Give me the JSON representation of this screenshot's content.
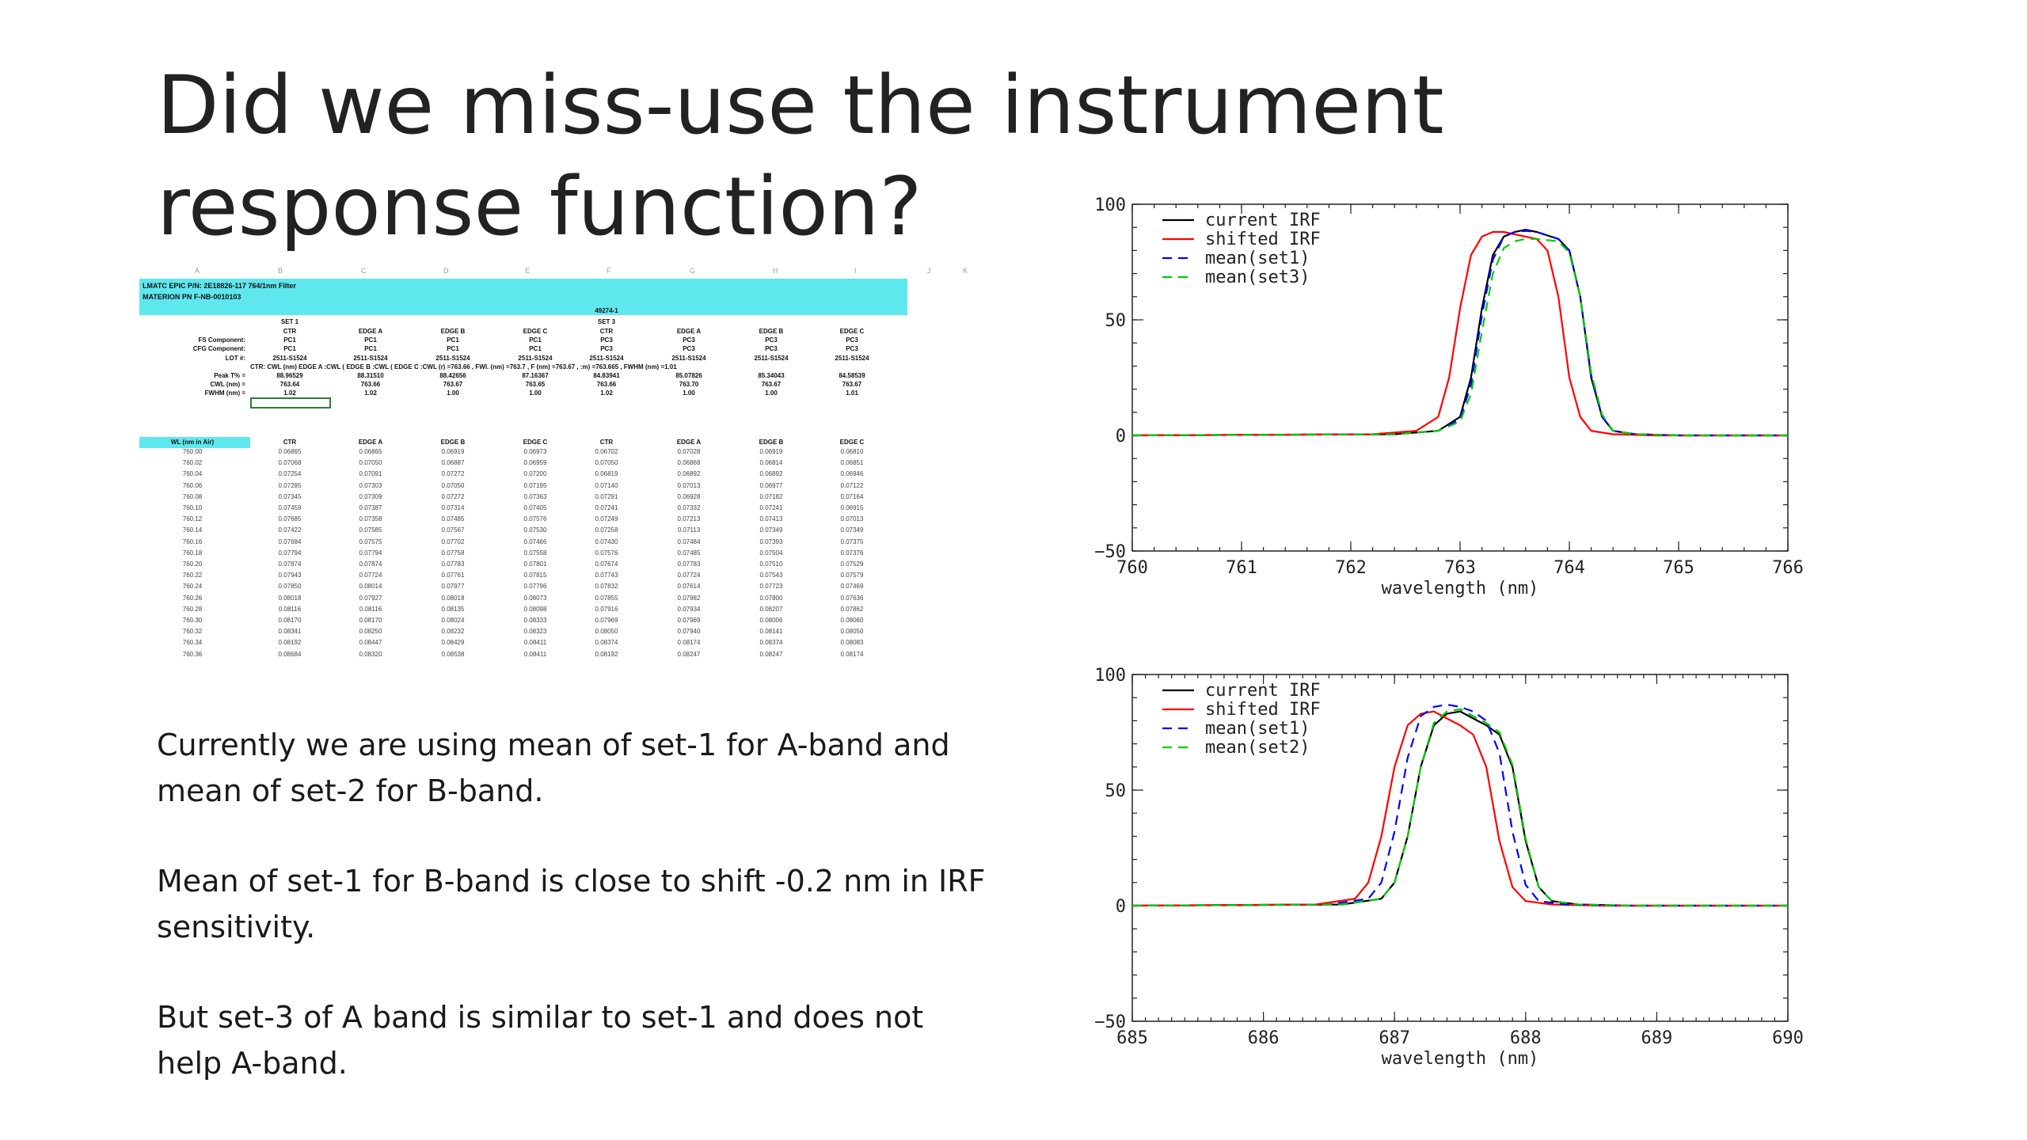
{
  "slide": {
    "title": "Did we miss-use the instrument response function?",
    "bullets": [
      "Currently we are using mean of set-1 for A-band and mean of set-2 for B-band.",
      "Mean of set-1 for B-band is close to shift -0.2 nm in IRF sensitivity.",
      "But set-3 of A band is similar to set-1 and does not help A-band."
    ]
  },
  "spreadsheet": {
    "column_letters": [
      "A",
      "B",
      "C",
      "D",
      "E",
      "F",
      "G",
      "H",
      "I",
      "J",
      "K"
    ],
    "header_line1": "LMATC EPIC P/N: 2E18826-117   764/1nm Filter",
    "header_line2": "MATERION PN F-NB-0010103",
    "lot_number_top": "49274-1",
    "set_labels": [
      "SET 1",
      "SET 3"
    ],
    "row_labels": [
      "FS Component:",
      "CFG Component:",
      "LOT #:",
      "Peak T% =",
      "CWL (nm) =",
      "FWHM (nm) ="
    ],
    "wl_header": "WL (nm in Air)",
    "columns": [
      "CTR",
      "EDGE A",
      "EDGE B",
      "EDGE C",
      "CTR",
      "EDGE A",
      "EDGE B",
      "EDGE C"
    ],
    "fs_component": [
      "PC1",
      "PC1",
      "PC1",
      "PC1",
      "PC3",
      "PC3",
      "PC3",
      "PC3"
    ],
    "cfg_component": [
      "PC1",
      "PC1",
      "PC1",
      "PC1",
      "PC3",
      "PC3",
      "PC3",
      "PC3"
    ],
    "lot": [
      "2511-S1524",
      "2511-S1524",
      "2511-S1524",
      "2511-S1524",
      "2511-S1524",
      "2511-S1524",
      "2511-S1524",
      "2511-S1524"
    ],
    "desc_row": "CTR: CWL (nm) EDGE A :CWL ( EDGE B :CWL ( EDGE C :CWL (r) =763.66 , FWI. (nm) =763.7 , F (nm) =763.67 , :m) =763.665 , FWHM (nm) =1.01",
    "peak": [
      "88.96529",
      "88.31510",
      "88.42656",
      "87.16367",
      "84.83941",
      "85.07826",
      "85.34043",
      "84.58539"
    ],
    "cwl": [
      "763.64",
      "763.66",
      "763.67",
      "763.65",
      "763.66",
      "763.70",
      "763.67",
      "763.67"
    ],
    "fwhm": [
      "1.02",
      "1.02",
      "1.00",
      "1.00",
      "1.02",
      "1.00",
      "1.00",
      "1.01"
    ],
    "wavelengths": [
      "760.00",
      "760.02",
      "760.04",
      "760.06",
      "760.08",
      "760.10",
      "760.12",
      "760.14",
      "760.16",
      "760.18",
      "760.20",
      "760.22",
      "760.24",
      "760.26",
      "760.28",
      "760.30",
      "760.32",
      "760.34",
      "760.36"
    ],
    "rows": [
      [
        "0.06865",
        "0.06865",
        "0.06919",
        "0.06973",
        "0.06702",
        "0.07028",
        "0.06919",
        "0.06810"
      ],
      [
        "0.07068",
        "0.07050",
        "0.06887",
        "0.06959",
        "0.07050",
        "0.06868",
        "0.06814",
        "0.06851"
      ],
      [
        "0.07254",
        "0.07091",
        "0.07272",
        "0.07200",
        "0.06819",
        "0.06892",
        "0.06892",
        "0.06946"
      ],
      [
        "0.07285",
        "0.07303",
        "0.07050",
        "0.07195",
        "0.07140",
        "0.07013",
        "0.06977",
        "0.07122"
      ],
      [
        "0.07345",
        "0.07309",
        "0.07272",
        "0.07363",
        "0.07291",
        "0.06928",
        "0.07182",
        "0.07164"
      ],
      [
        "0.07459",
        "0.07387",
        "0.07314",
        "0.07405",
        "0.07241",
        "0.07332",
        "0.07241",
        "0.06915"
      ],
      [
        "0.07685",
        "0.07358",
        "0.07485",
        "0.07576",
        "0.07249",
        "0.07213",
        "0.07413",
        "0.07013"
      ],
      [
        "0.07422",
        "0.07585",
        "0.07567",
        "0.07530",
        "0.07258",
        "0.07113",
        "0.07349",
        "0.07349"
      ],
      [
        "0.07684",
        "0.07575",
        "0.07702",
        "0.07466",
        "0.07430",
        "0.07484",
        "0.07393",
        "0.07375"
      ],
      [
        "0.07794",
        "0.07794",
        "0.07758",
        "0.07558",
        "0.07576",
        "0.07485",
        "0.07504",
        "0.07376"
      ],
      [
        "0.07874",
        "0.07874",
        "0.07783",
        "0.07801",
        "0.07674",
        "0.07783",
        "0.07510",
        "0.07529"
      ],
      [
        "0.07943",
        "0.07724",
        "0.07761",
        "0.07815",
        "0.07743",
        "0.07724",
        "0.07543",
        "0.07579"
      ],
      [
        "0.07850",
        "0.08014",
        "0.07977",
        "0.07796",
        "0.07832",
        "0.07614",
        "0.07723",
        "0.07469"
      ],
      [
        "0.08018",
        "0.07927",
        "0.08018",
        "0.08073",
        "0.07855",
        "0.07982",
        "0.07800",
        "0.07636"
      ],
      [
        "0.08116",
        "0.08116",
        "0.08135",
        "0.08098",
        "0.07916",
        "0.07934",
        "0.08207",
        "0.07862"
      ],
      [
        "0.08170",
        "0.08170",
        "0.08024",
        "0.08333",
        "0.07969",
        "0.07969",
        "0.08006",
        "0.08060"
      ],
      [
        "0.08341",
        "0.08250",
        "0.08232",
        "0.08323",
        "0.08050",
        "0.07940",
        "0.08141",
        "0.08050"
      ],
      [
        "0.08192",
        "0.08447",
        "0.08429",
        "0.08411",
        "0.08374",
        "0.08174",
        "0.08374",
        "0.08083"
      ],
      [
        "0.08684",
        "0.08320",
        "0.08538",
        "0.08411",
        "0.08192",
        "0.08247",
        "0.08247",
        "0.08174"
      ]
    ]
  },
  "chart_data": [
    {
      "type": "line",
      "title": "",
      "xlabel": "wavelength (nm)",
      "ylabel": "",
      "xlim": [
        760,
        766
      ],
      "ylim": [
        -50,
        100
      ],
      "xticks": [
        760,
        761,
        762,
        763,
        764,
        765,
        766
      ],
      "yticks": [
        -50,
        0,
        50,
        100
      ],
      "legend_position": "top-left",
      "grid": false,
      "series": [
        {
          "name": "current IRF",
          "color": "#000000",
          "dash": "solid",
          "x": [
            760.0,
            762.4,
            762.8,
            763.0,
            763.1,
            763.2,
            763.3,
            763.4,
            763.5,
            763.6,
            763.7,
            763.8,
            763.9,
            764.0,
            764.1,
            764.2,
            764.3,
            764.4,
            764.6,
            765.0,
            766.0
          ],
          "y": [
            0,
            0.5,
            2,
            8,
            25,
            55,
            78,
            86,
            88,
            89,
            88,
            86.5,
            85,
            80,
            60,
            25,
            8,
            2,
            0.5,
            0,
            0
          ]
        },
        {
          "name": "shifted IRF",
          "color": "#ff0000",
          "dash": "solid",
          "x": [
            760.0,
            762.2,
            762.6,
            762.8,
            762.9,
            763.0,
            763.1,
            763.2,
            763.3,
            763.4,
            763.5,
            763.6,
            763.7,
            763.8,
            763.9,
            764.0,
            764.1,
            764.2,
            764.4,
            764.8,
            766.0
          ],
          "y": [
            0,
            0.5,
            2,
            8,
            25,
            55,
            78,
            86,
            88,
            88,
            87,
            86,
            85,
            80,
            60,
            25,
            8,
            2,
            0.5,
            0,
            0
          ]
        },
        {
          "name": "mean(set1)",
          "color": "#0000ff",
          "dash": "dashed",
          "x": [
            760.0,
            762.4,
            762.8,
            763.0,
            763.1,
            763.2,
            763.3,
            763.4,
            763.5,
            763.6,
            763.7,
            763.8,
            763.9,
            764.0,
            764.1,
            764.2,
            764.3,
            764.4,
            764.6,
            765.0,
            766.0
          ],
          "y": [
            0,
            0.5,
            2,
            7,
            22,
            52,
            76,
            86,
            88,
            88.5,
            88,
            86.5,
            85,
            80,
            60,
            26,
            8,
            2,
            0.5,
            0,
            0
          ]
        },
        {
          "name": "mean(set3)",
          "color": "#00cc00",
          "dash": "dashed",
          "x": [
            760.0,
            762.4,
            762.8,
            763.0,
            763.1,
            763.2,
            763.3,
            763.4,
            763.5,
            763.6,
            763.7,
            763.8,
            763.9,
            764.0,
            764.1,
            764.2,
            764.3,
            764.4,
            764.6,
            765.0,
            766.0
          ],
          "y": [
            0,
            0.5,
            2,
            6,
            18,
            45,
            70,
            81,
            84,
            85,
            85,
            84.5,
            84,
            79,
            60,
            27,
            9,
            2,
            0.5,
            0,
            0
          ]
        }
      ]
    },
    {
      "type": "line",
      "title": "",
      "xlabel": "wavelength (nm)",
      "ylabel": "",
      "xlim": [
        685,
        690
      ],
      "ylim": [
        -50,
        100
      ],
      "xticks": [
        685,
        686,
        687,
        688,
        689,
        690
      ],
      "yticks": [
        -50,
        0,
        50,
        100
      ],
      "legend_position": "top-left",
      "grid": false,
      "series": [
        {
          "name": "current IRF",
          "color": "#000000",
          "dash": "solid",
          "x": [
            685.0,
            686.6,
            686.9,
            687.0,
            687.1,
            687.2,
            687.3,
            687.4,
            687.5,
            687.6,
            687.7,
            687.8,
            687.9,
            688.0,
            688.1,
            688.2,
            688.4,
            688.8,
            690.0
          ],
          "y": [
            0,
            0.5,
            3,
            10,
            30,
            60,
            78,
            83,
            84,
            81,
            78,
            74,
            60,
            28,
            8,
            2,
            0.5,
            0,
            0
          ]
        },
        {
          "name": "shifted IRF",
          "color": "#ff0000",
          "dash": "solid",
          "x": [
            685.0,
            686.4,
            686.7,
            686.8,
            686.9,
            687.0,
            687.1,
            687.2,
            687.3,
            687.4,
            687.5,
            687.6,
            687.7,
            687.8,
            687.9,
            688.0,
            688.2,
            688.6,
            690.0
          ],
          "y": [
            0,
            0.5,
            3,
            10,
            30,
            60,
            78,
            83,
            84,
            81,
            78,
            74,
            60,
            28,
            8,
            2,
            0.5,
            0,
            0
          ]
        },
        {
          "name": "mean(set1)",
          "color": "#0000ff",
          "dash": "dashed",
          "x": [
            685.0,
            686.5,
            686.8,
            686.9,
            687.0,
            687.1,
            687.2,
            687.3,
            687.4,
            687.5,
            687.6,
            687.7,
            687.8,
            687.9,
            688.0,
            688.1,
            688.3,
            688.7,
            690.0
          ],
          "y": [
            0,
            0.5,
            3,
            10,
            32,
            64,
            82,
            86,
            87,
            86,
            84,
            80,
            66,
            32,
            9,
            2,
            0.5,
            0,
            0
          ]
        },
        {
          "name": "mean(set2)",
          "color": "#00cc00",
          "dash": "dashed",
          "x": [
            685.0,
            686.6,
            686.9,
            687.0,
            687.1,
            687.2,
            687.3,
            687.4,
            687.5,
            687.6,
            687.7,
            687.8,
            687.9,
            688.0,
            688.1,
            688.2,
            688.4,
            688.8,
            690.0
          ],
          "y": [
            0,
            0.5,
            3,
            10,
            30,
            60,
            79,
            84,
            85,
            82,
            79,
            75,
            61,
            29,
            8,
            2,
            0.5,
            0,
            0
          ]
        }
      ]
    }
  ]
}
